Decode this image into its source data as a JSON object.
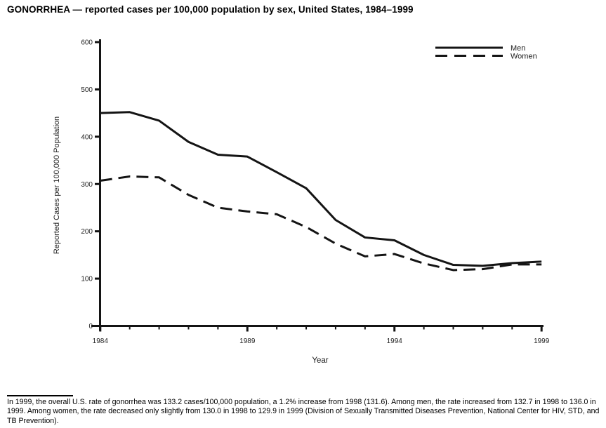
{
  "chart_data": {
    "type": "line",
    "title": "GONORRHEA — reported cases per 100,000 population by sex, United States, 1984–1999",
    "xlabel": "Year",
    "ylabel": "Reported Cases per 100,000 Population",
    "x": [
      1984,
      1985,
      1986,
      1987,
      1988,
      1989,
      1990,
      1991,
      1992,
      1993,
      1994,
      1995,
      1996,
      1997,
      1998,
      1999
    ],
    "series": [
      {
        "name": "Men",
        "style": "solid",
        "values": [
          450,
          452,
          434,
          389,
          362,
          358,
          325,
          291,
          224,
          187,
          181,
          150,
          129,
          127,
          132.7,
          136.0
        ]
      },
      {
        "name": "Women",
        "style": "dashed",
        "values": [
          307,
          316,
          314,
          277,
          250,
          242,
          236,
          209,
          174,
          147,
          152,
          132,
          118,
          120,
          130.0,
          129.9
        ]
      }
    ],
    "xlim": [
      1984,
      1999
    ],
    "ylim": [
      0,
      600
    ],
    "y_ticks": [
      0,
      100,
      200,
      300,
      400,
      500,
      600
    ],
    "x_labeled_years": [
      1984,
      1989,
      1994,
      1999
    ],
    "x_tick_labels": [
      "1984",
      "1989",
      "1994",
      "1999"
    ],
    "grid": false,
    "legend_position": "top-right",
    "line_color": "#141414"
  },
  "legend": {
    "men_label": "Men",
    "women_label": "Women"
  },
  "footnote": {
    "text": "In 1999, the overall U.S. rate of gonorrhea was 133.2 cases/100,000 population, a 1.2% increase from 1998 (131.6). Among men, the rate increased from 132.7 in 1998 to 136.0 in 1999. Among women, the rate decreased only slightly from 130.0 in 1998 to 129.9 in 1999 (Division of Sexually Transmitted Diseases Prevention, National Center for HIV, STD, and TB Prevention)."
  }
}
